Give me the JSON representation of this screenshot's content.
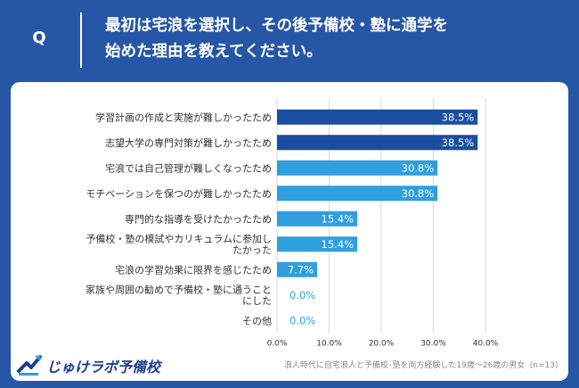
{
  "header": {
    "q_mark": "Q",
    "question_line1": "最初は宅浪を選択し、その後予備校・塾に通学を",
    "question_line2": "始めた理由を教えてください。"
  },
  "chart_data": {
    "type": "bar",
    "orientation": "horizontal",
    "categories": [
      [
        "学習計画の作成と実施が難しかったため"
      ],
      [
        "志望大学の専門対策が難しかったため"
      ],
      [
        "宅浪では自己管理が難しくなったため"
      ],
      [
        "モチベーションを保つのが難しかったため"
      ],
      [
        "専門的な指導を受けたかったため"
      ],
      [
        "予備校・塾の模試やカリキュラムに参加し",
        "たかった"
      ],
      [
        "宅浪の学習効果に限界を感じたため"
      ],
      [
        "家族や周囲の勧めで予備校・塾に通うこと",
        "にした"
      ],
      [
        "その他"
      ]
    ],
    "values": [
      38.5,
      38.5,
      30.8,
      30.8,
      15.4,
      15.4,
      7.7,
      0.0,
      0.0
    ],
    "value_labels": [
      "38.5%",
      "38.5%",
      "30.8%",
      "30.8%",
      "15.4%",
      "15.4%",
      "7.7%",
      "0.0%",
      "0.0%"
    ],
    "xlim": [
      0,
      40
    ],
    "xticks": [
      0,
      10,
      20,
      30,
      40
    ],
    "xtick_labels": [
      "0.0%",
      "10.0%",
      "20.0%",
      "30.0%",
      "40.0%"
    ],
    "bar_colors": [
      "#1a4fa0",
      "#1a4fa0",
      "#2f9fe0",
      "#2f9fe0",
      "#2f9fe0",
      "#2f9fe0",
      "#2f9fe0",
      "#2f9fe0",
      "#2f9fe0"
    ],
    "gridlines": true
  },
  "footer": {
    "logo_text": "じゅけラボ予備校",
    "note": "浪人時代に自宅浪人と予備校･塾を両方経験した19歳～26歳の男女（n=13）"
  }
}
